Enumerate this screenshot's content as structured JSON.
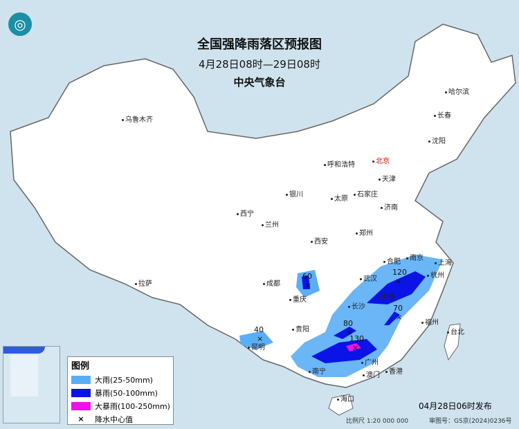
{
  "header": {
    "title": "全国强降雨落区预报图",
    "period": "4月28日08时—29日08时",
    "agency": "中央气象台"
  },
  "logo": {
    "name": "cma-logo-icon",
    "color": "#1a8fa6"
  },
  "cities": [
    {
      "name": "乌鲁木齐"
    },
    {
      "name": "哈尔滨"
    },
    {
      "name": "长春"
    },
    {
      "name": "沈阳"
    },
    {
      "name": "北京",
      "capital": true
    },
    {
      "name": "天津"
    },
    {
      "name": "呼和浩特"
    },
    {
      "name": "石家庄"
    },
    {
      "name": "太原"
    },
    {
      "name": "银川"
    },
    {
      "name": "济南"
    },
    {
      "name": "西宁"
    },
    {
      "name": "兰州"
    },
    {
      "name": "郑州"
    },
    {
      "name": "西安"
    },
    {
      "name": "合肥"
    },
    {
      "name": "南京"
    },
    {
      "name": "上海"
    },
    {
      "name": "武汉"
    },
    {
      "name": "杭州"
    },
    {
      "name": "成都"
    },
    {
      "name": "重庆"
    },
    {
      "name": "长沙"
    },
    {
      "name": "南昌"
    },
    {
      "name": "拉萨"
    },
    {
      "name": "贵阳"
    },
    {
      "name": "福州"
    },
    {
      "name": "台北"
    },
    {
      "name": "昆明"
    },
    {
      "name": "南宁"
    },
    {
      "name": "广州"
    },
    {
      "name": "香港"
    },
    {
      "name": "澳门"
    },
    {
      "name": "海口"
    }
  ],
  "rain_centers": [
    "60",
    "40",
    "120",
    "70",
    "80",
    "130"
  ],
  "legend": {
    "title": "图例",
    "items": [
      {
        "label": "大雨(25-50mm)",
        "color": "#5aaef5"
      },
      {
        "label": "暴雨(50-100mm)",
        "color": "#0a14e6"
      },
      {
        "label": "大暴雨(100-250mm)",
        "color": "#f010f0"
      }
    ],
    "center_label": "降水中心值",
    "center_symbol": "×"
  },
  "footer": {
    "issued": "04月28日06时发布",
    "scale": "比例尺 1:20 000 000",
    "review": "审图号：GS京(2024)0236号"
  },
  "colors": {
    "land": "#ffffff",
    "sea": "#cfe3ef",
    "border": "#8a8a8a"
  }
}
